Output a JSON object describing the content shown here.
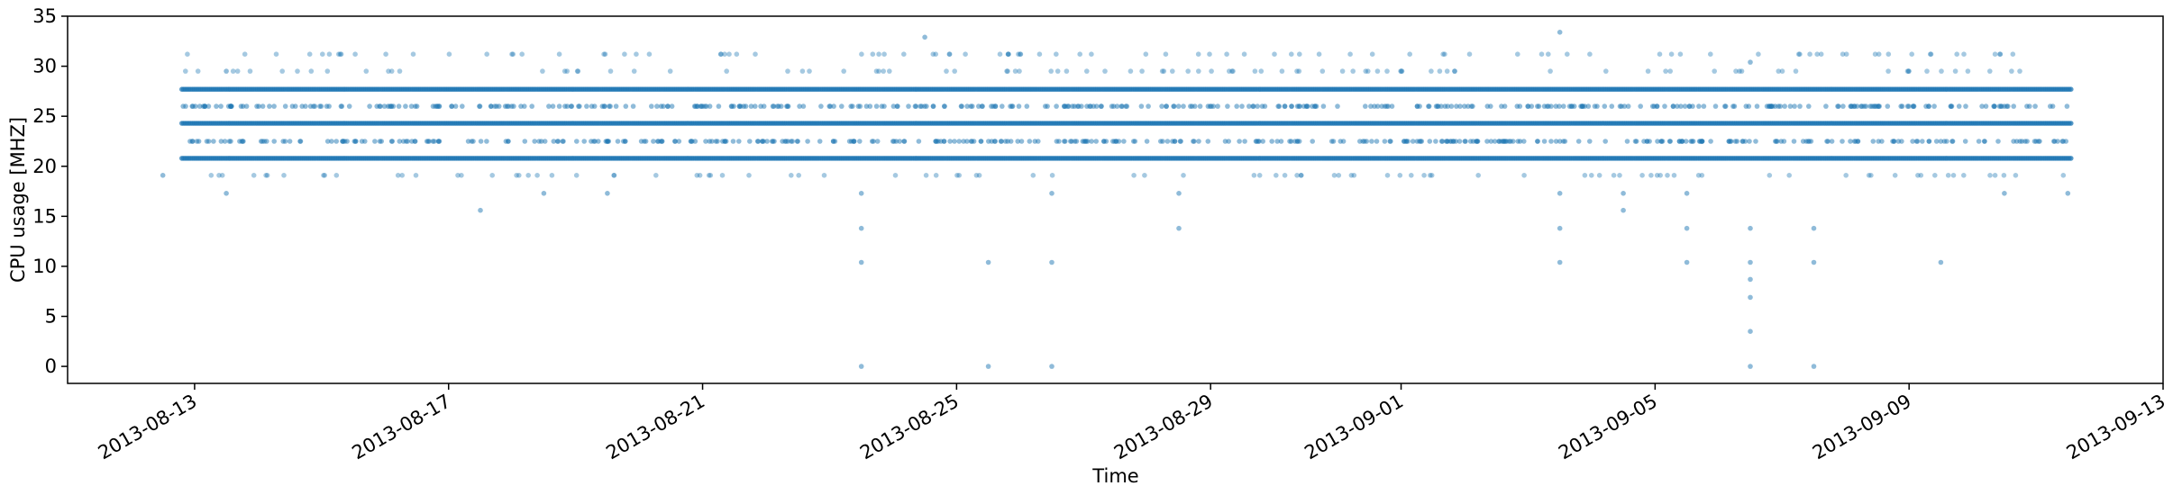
{
  "chart_data": {
    "type": "scatter",
    "title": "",
    "xlabel": "Time",
    "ylabel": "CPU usage [MHZ]",
    "xlim": [
      "2013-08-11",
      "2013-09-13"
    ],
    "ylim": [
      -1.7,
      35
    ],
    "x_ticks": [
      "2013-08-13",
      "2013-08-17",
      "2013-08-21",
      "2013-08-25",
      "2013-08-29",
      "2013-09-01",
      "2013-09-05",
      "2013-09-09",
      "2013-09-13"
    ],
    "y_ticks": [
      0,
      5,
      10,
      15,
      20,
      25,
      30,
      35
    ],
    "grid": false,
    "marker_color": "#1f77b4",
    "x_range": [
      "2013-08-12",
      "2013-09-11"
    ],
    "dense_levels": [
      20.8,
      24.3,
      27.7
    ],
    "medium_levels": [
      22.5,
      26.0
    ],
    "sparse_levels": [
      19.1,
      29.5,
      31.2
    ],
    "outliers": [
      {
        "x": "2013-08-12",
        "y": 19.1
      },
      {
        "x": "2013-08-13",
        "y": 17.3
      },
      {
        "x": "2013-08-13",
        "y": 29.5
      },
      {
        "x": "2013-08-17",
        "y": 15.6
      },
      {
        "x": "2013-08-18",
        "y": 17.3
      },
      {
        "x": "2013-08-19",
        "y": 17.3
      },
      {
        "x": "2013-08-23",
        "y": 17.3
      },
      {
        "x": "2013-08-23",
        "y": 13.8
      },
      {
        "x": "2013-08-23",
        "y": 10.4
      },
      {
        "x": "2013-08-23",
        "y": 0.0
      },
      {
        "x": "2013-08-24",
        "y": 32.9
      },
      {
        "x": "2013-08-25",
        "y": 10.4
      },
      {
        "x": "2013-08-25",
        "y": 0.0
      },
      {
        "x": "2013-08-26",
        "y": 17.3
      },
      {
        "x": "2013-08-26",
        "y": 10.4
      },
      {
        "x": "2013-08-26",
        "y": 0.0
      },
      {
        "x": "2013-08-28",
        "y": 17.3
      },
      {
        "x": "2013-08-28",
        "y": 13.8
      },
      {
        "x": "2013-09-03",
        "y": 33.4
      },
      {
        "x": "2013-09-03",
        "y": 17.3
      },
      {
        "x": "2013-09-03",
        "y": 13.8
      },
      {
        "x": "2013-09-03",
        "y": 10.4
      },
      {
        "x": "2013-09-04",
        "y": 15.6
      },
      {
        "x": "2013-09-04",
        "y": 17.3
      },
      {
        "x": "2013-09-05",
        "y": 17.3
      },
      {
        "x": "2013-09-05",
        "y": 13.8
      },
      {
        "x": "2013-09-05",
        "y": 10.4
      },
      {
        "x": "2013-09-06",
        "y": 13.8
      },
      {
        "x": "2013-09-06",
        "y": 10.4
      },
      {
        "x": "2013-09-06",
        "y": 8.7
      },
      {
        "x": "2013-09-06",
        "y": 6.9
      },
      {
        "x": "2013-09-06",
        "y": 3.5
      },
      {
        "x": "2013-09-06",
        "y": 0.0
      },
      {
        "x": "2013-09-06",
        "y": 30.4
      },
      {
        "x": "2013-09-07",
        "y": 13.8
      },
      {
        "x": "2013-09-07",
        "y": 10.4
      },
      {
        "x": "2013-09-07",
        "y": 0.0
      },
      {
        "x": "2013-09-09",
        "y": 10.4
      },
      {
        "x": "2013-09-10",
        "y": 17.3
      },
      {
        "x": "2013-09-11",
        "y": 17.3
      }
    ]
  }
}
